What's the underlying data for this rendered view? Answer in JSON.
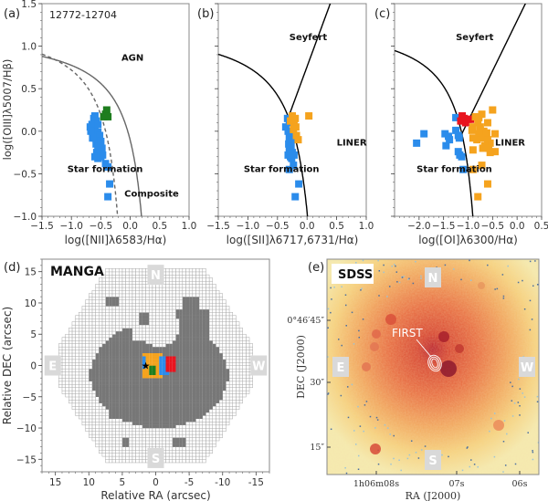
{
  "figure": {
    "panel_labels": [
      "(a)",
      "(b)",
      "(c)",
      "(d)",
      "(e)"
    ],
    "object_id": "12772-12704"
  },
  "chart_data": [
    {
      "type": "scatter",
      "panel": "(a)",
      "title": "12772-12704",
      "xlabel": "log([NII]λ6583/Hα)",
      "ylabel": "log([OIII]λ5007/Hβ)",
      "xlim": [
        -1.5,
        1.0
      ],
      "ylim": [
        -1.0,
        1.5
      ],
      "xticks": [
        "−1.5",
        "−1.0",
        "−0.5",
        "0.0",
        "0.5",
        "1.0"
      ],
      "xtick_values": [
        -1.5,
        -1.0,
        -0.5,
        0.0,
        0.5,
        1.0
      ],
      "yticks": [
        "−1.0",
        "−0.5",
        "0.0",
        "0.5",
        "1.0",
        "1.5"
      ],
      "ytick_values": [
        -1.0,
        -0.5,
        0.0,
        0.5,
        1.0,
        1.5
      ],
      "region_labels": [
        {
          "text": "AGN",
          "x": -0.15,
          "y": 0.83
        },
        {
          "text": "Star formation",
          "x": -1.07,
          "y": -0.48
        },
        {
          "text": "Composite",
          "x": -0.1,
          "y": -0.77
        }
      ],
      "curves": [
        {
          "name": "Kewley 2001",
          "style": "solid",
          "color": "#666666",
          "formula": "0.61/(x-0.47)+1.19"
        },
        {
          "name": "Kauffmann 2003",
          "style": "dashed",
          "color": "#666666",
          "formula": "0.61/(x-0.05)+1.3"
        }
      ],
      "series": [
        {
          "name": "star-forming",
          "color": "#2b8ceb",
          "points": [
            [
              -0.6,
              0.18
            ],
            [
              -0.62,
              0.15
            ],
            [
              -0.58,
              0.12
            ],
            [
              -0.65,
              0.08
            ],
            [
              -0.68,
              0.05
            ],
            [
              -0.6,
              0.05
            ],
            [
              -0.55,
              0.08
            ],
            [
              -0.67,
              0.0
            ],
            [
              -0.62,
              -0.02
            ],
            [
              -0.55,
              -0.01
            ],
            [
              -0.6,
              -0.08
            ],
            [
              -0.64,
              -0.08
            ],
            [
              -0.52,
              -0.05
            ],
            [
              -0.58,
              -0.15
            ],
            [
              -0.55,
              -0.18
            ],
            [
              -0.5,
              -0.12
            ],
            [
              -0.57,
              -0.25
            ],
            [
              -0.52,
              -0.25
            ],
            [
              -0.48,
              -0.2
            ],
            [
              -0.6,
              -0.3
            ],
            [
              -0.55,
              -0.32
            ],
            [
              -0.5,
              -0.3
            ],
            [
              -0.47,
              -0.28
            ],
            [
              -0.42,
              -0.38
            ],
            [
              -0.38,
              -0.42
            ],
            [
              -0.35,
              -0.62
            ],
            [
              -0.38,
              -0.77
            ]
          ]
        },
        {
          "name": "composite",
          "color": "#1e7d1e",
          "points": [
            [
              -0.4,
              0.25
            ],
            [
              -0.42,
              0.2
            ],
            [
              -0.45,
              0.17
            ],
            [
              -0.38,
              0.17
            ]
          ]
        }
      ]
    },
    {
      "type": "scatter",
      "panel": "(b)",
      "xlabel": "log([SII]λ6717,6731/Hα)",
      "ylabel": "",
      "xlim": [
        -1.5,
        1.0
      ],
      "ylim": [
        -1.0,
        1.5
      ],
      "xticks": [
        "−1.5",
        "−1.0",
        "−0.5",
        "0.0",
        "0.5",
        "1.0"
      ],
      "xtick_values": [
        -1.5,
        -1.0,
        -0.5,
        0.0,
        0.5,
        1.0
      ],
      "region_labels": [
        {
          "text": "Seyfert",
          "x": -0.3,
          "y": 1.07
        },
        {
          "text": "LINER",
          "x": 0.5,
          "y": -0.17
        },
        {
          "text": "Star formation",
          "x": -1.07,
          "y": -0.48
        }
      ],
      "curves": [
        {
          "name": "Kewley 2006 SF",
          "style": "solid",
          "color": "#000000",
          "formula": "0.72/(x-0.32)+1.30"
        },
        {
          "name": "Seyfert-LINER",
          "style": "solid",
          "color": "#000000",
          "formula": "1.89x+0.76"
        }
      ],
      "series": [
        {
          "name": "star-forming",
          "color": "#2b8ceb",
          "points": [
            [
              -0.33,
              0.15
            ],
            [
              -0.3,
              0.1
            ],
            [
              -0.36,
              0.05
            ],
            [
              -0.32,
              0.0
            ],
            [
              -0.28,
              -0.02
            ],
            [
              -0.3,
              -0.08
            ],
            [
              -0.26,
              -0.1
            ],
            [
              -0.31,
              -0.15
            ],
            [
              -0.27,
              -0.18
            ],
            [
              -0.3,
              -0.22
            ],
            [
              -0.25,
              -0.25
            ],
            [
              -0.32,
              -0.28
            ],
            [
              -0.28,
              -0.3
            ],
            [
              -0.26,
              -0.32
            ],
            [
              -0.22,
              -0.28
            ],
            [
              -0.23,
              -0.4
            ],
            [
              -0.3,
              -0.45
            ],
            [
              -0.14,
              -0.62
            ],
            [
              -0.2,
              -0.77
            ]
          ]
        },
        {
          "name": "LINER",
          "color": "#f5a31e",
          "points": [
            [
              -0.25,
              0.18
            ],
            [
              -0.2,
              0.15
            ],
            [
              -0.28,
              0.12
            ],
            [
              -0.22,
              0.08
            ],
            [
              -0.19,
              0.05
            ],
            [
              -0.23,
              0.02
            ],
            [
              -0.18,
              -0.05
            ],
            [
              -0.15,
              -0.1
            ],
            [
              0.03,
              0.18
            ]
          ]
        }
      ]
    },
    {
      "type": "scatter",
      "panel": "(c)",
      "xlabel": "log([OI]λ6300/Hα)",
      "ylabel": "",
      "xlim": [
        -2.5,
        0.5
      ],
      "ylim": [
        -1.0,
        1.5
      ],
      "xticks": [
        "−2.0",
        "−1.5",
        "−1.0",
        "−0.5",
        "0.0",
        "0.5"
      ],
      "xtick_values": [
        -2.0,
        -1.5,
        -1.0,
        -0.5,
        0.0,
        0.5
      ],
      "region_labels": [
        {
          "text": "Seyfert",
          "x": -1.25,
          "y": 1.07
        },
        {
          "text": "LINER",
          "x": -0.45,
          "y": -0.17
        },
        {
          "text": "Star formation",
          "x": -2.05,
          "y": -0.48
        }
      ],
      "curves": [
        {
          "name": "Kewley 2006 SF",
          "style": "solid",
          "color": "#000000",
          "formula": "0.73/(x+0.59)+1.33"
        },
        {
          "name": "Seyfert-LINER",
          "style": "solid",
          "color": "#000000",
          "formula": "1.18x+1.30"
        }
      ],
      "series": [
        {
          "name": "star-forming",
          "color": "#2b8ceb",
          "points": [
            [
              -2.05,
              -0.14
            ],
            [
              -1.9,
              -0.03
            ],
            [
              -1.47,
              -0.03
            ],
            [
              -1.4,
              -0.06
            ],
            [
              -1.45,
              -0.17
            ],
            [
              -1.38,
              -0.1
            ],
            [
              -1.25,
              0.01
            ],
            [
              -1.2,
              -0.05
            ],
            [
              -1.18,
              -0.08
            ],
            [
              -1.25,
              0.16
            ],
            [
              -1.2,
              -0.24
            ],
            [
              -1.17,
              -0.28
            ],
            [
              -1.13,
              -0.3
            ],
            [
              -1.1,
              -0.45
            ]
          ]
        },
        {
          "name": "seyfert",
          "color": "#e8141e",
          "points": [
            [
              -1.12,
              0.18
            ],
            [
              -1.08,
              0.15
            ],
            [
              -1.15,
              0.12
            ],
            [
              -1.05,
              0.1
            ],
            [
              -1.0,
              0.14
            ],
            [
              -0.95,
              0.14
            ]
          ]
        },
        {
          "name": "LINER",
          "color": "#f5a31e",
          "points": [
            [
              -0.85,
              0.17
            ],
            [
              -0.78,
              0.16
            ],
            [
              -0.72,
              0.2
            ],
            [
              -0.8,
              0.1
            ],
            [
              -0.9,
              0.05
            ],
            [
              -0.75,
              0.05
            ],
            [
              -0.68,
              0.0
            ],
            [
              -0.78,
              -0.03
            ],
            [
              -0.62,
              -0.02
            ],
            [
              -0.82,
              -0.1
            ],
            [
              -0.7,
              -0.08
            ],
            [
              -0.6,
              -0.1
            ],
            [
              -0.55,
              -0.14
            ],
            [
              -0.66,
              -0.17
            ],
            [
              -0.58,
              -0.2
            ],
            [
              -0.7,
              -0.2
            ],
            [
              -0.45,
              -0.03
            ],
            [
              -0.45,
              -0.24
            ],
            [
              -0.55,
              -0.25
            ],
            [
              -0.9,
              -0.22
            ],
            [
              -0.9,
              -0.08
            ],
            [
              -0.6,
              0.1
            ],
            [
              -0.5,
              0.25
            ],
            [
              -0.72,
              -0.4
            ],
            [
              -0.9,
              -0.45
            ],
            [
              -0.6,
              -0.62
            ],
            [
              -0.8,
              -0.77
            ],
            [
              -0.92,
              0.01
            ]
          ]
        }
      ]
    },
    {
      "type": "heatmap",
      "panel": "(d)",
      "title": "MANGA",
      "xlabel": "Relative RA (arcsec)",
      "ylabel": "Relative DEC (arcsec)",
      "xlim": [
        17,
        -17
      ],
      "ylim": [
        -17,
        17
      ],
      "xticks": [
        "15",
        "10",
        "5",
        "0",
        "-5",
        "-10",
        "-15"
      ],
      "xtick_values": [
        15,
        10,
        5,
        0,
        -5,
        -10,
        -15
      ],
      "yticks": [
        "−15",
        "−10",
        "−5",
        "0",
        "5",
        "10",
        "15"
      ],
      "ytick_values": [
        -15,
        -10,
        -5,
        0,
        5,
        10,
        15
      ],
      "compass": [
        "N",
        "S",
        "E",
        "W"
      ],
      "categories": {
        "no-data": "#ffffff",
        "masked": "#777777",
        "star-forming": "#2b8ceb",
        "LINER": "#f5a31e",
        "composite": "#1e7d1e",
        "seyfert": "#e8141e"
      },
      "marker": {
        "symbol": "star",
        "x": 1.5,
        "y": 0
      }
    },
    {
      "type": "heatmap",
      "panel": "(e)",
      "title": "SDSS",
      "xlabel": "RA (J2000)",
      "ylabel": "DEC (J2000)",
      "xticks": [
        "1h06m08s",
        "07s",
        "06s"
      ],
      "yticks": [
        "0°46′45″",
        "30″",
        "15″"
      ],
      "compass": [
        "N",
        "S",
        "E",
        "W"
      ],
      "annotation": "FIRST"
    }
  ]
}
